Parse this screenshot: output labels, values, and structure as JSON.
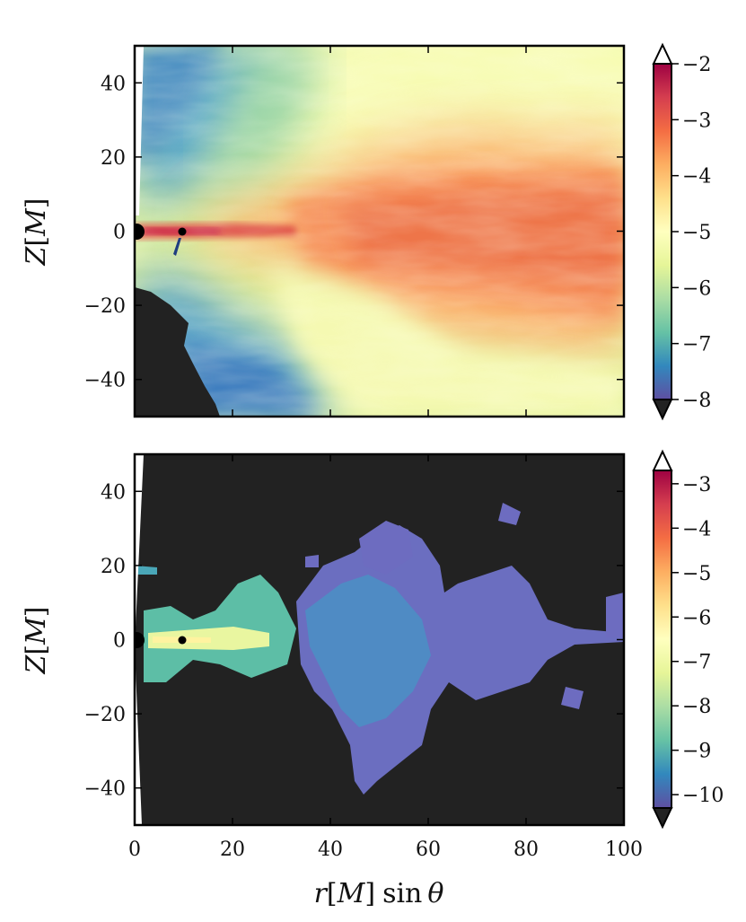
{
  "chart_data": [
    {
      "type": "heatmap",
      "panel": "top",
      "title": "",
      "xlabel": "",
      "ylabel_parts": {
        "var": "Z",
        "open": "[",
        "unit": "M",
        "close": "]"
      },
      "xlim": [
        0,
        100
      ],
      "ylim": [
        -50,
        50
      ],
      "x_ticks": [
        0,
        20,
        40,
        60,
        80,
        100
      ],
      "y_ticks": [
        -40,
        -20,
        0,
        20,
        40
      ],
      "y_tick_labels": [
        "−40",
        "−20",
        "0",
        "20",
        "40"
      ],
      "x_tick_labels_shown": false,
      "colorbar": {
        "colormap": "Spectral",
        "range": [
          -8,
          -2
        ],
        "ticks": [
          -2,
          -3,
          -4,
          -5,
          -6,
          -7,
          -8
        ],
        "tick_labels": [
          "−2",
          "−3",
          "−4",
          "−5",
          "−6",
          "−7",
          "−8"
        ],
        "extend": "both"
      },
      "background_masked_color": "#222222",
      "features": {
        "central_black_hole_x": 0,
        "secondary_black_hole_x": 10,
        "high_values_region": "equatorial disk, x 30–100, |Z| < 30, values ≈ −3.5 to −4",
        "low_values_region": "polar funnels near axis, values ≈ −7 to −8"
      }
    },
    {
      "type": "heatmap",
      "panel": "bottom",
      "title": "",
      "xlabel_parts": {
        "var1": "r",
        "open": "[",
        "unit": "M",
        "close": "]",
        "func": "sin",
        "var2": "θ"
      },
      "ylabel_parts": {
        "var": "Z",
        "open": "[",
        "unit": "M",
        "close": "]"
      },
      "xlim": [
        0,
        100
      ],
      "ylim": [
        -50,
        50
      ],
      "x_ticks": [
        0,
        20,
        40,
        60,
        80,
        100
      ],
      "x_tick_labels": [
        "0",
        "20",
        "40",
        "60",
        "80",
        "100"
      ],
      "y_ticks": [
        -40,
        -20,
        0,
        20,
        40
      ],
      "y_tick_labels": [
        "−40",
        "−20",
        "0",
        "20",
        "40"
      ],
      "colorbar": {
        "colormap": "Spectral",
        "range": [
          -10.3,
          -2.7
        ],
        "ticks": [
          -3,
          -4,
          -5,
          -6,
          -7,
          -8,
          -9,
          -10
        ],
        "tick_labels": [
          "−3",
          "−4",
          "−5",
          "−6",
          "−7",
          "−8",
          "−9",
          "−10"
        ],
        "extend": "both"
      },
      "background_masked_color": "#222222",
      "features": {
        "central_black_hole_x": 0,
        "secondary_black_hole_x": 10,
        "inner_region": "x 0–30, values ≈ −7 to −9",
        "outer_patches": "x 35–100, values ≈ −9.5 to −10"
      }
    }
  ]
}
